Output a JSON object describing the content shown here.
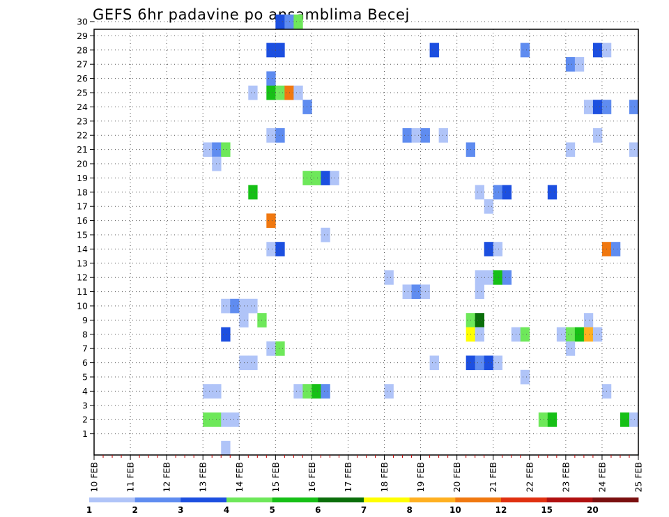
{
  "chart_data": {
    "type": "heatmap",
    "title": "GEFS 6hr padavine po ansamblima Becej",
    "xlabel": "",
    "ylabel": "",
    "x_unit": "6h steps from 10 FEB 00UTC",
    "x_tick_labels": [
      "10 FEB",
      "11 FEB",
      "12 FEB",
      "13 FEB",
      "14 FEB",
      "15 FEB",
      "16 FEB",
      "17 FEB",
      "18 FEB",
      "19 FEB",
      "20 FEB",
      "21 FEB",
      "22 FEB",
      "23 FEB",
      "24 FEB",
      "25 FEB"
    ],
    "xlim": [
      0,
      60
    ],
    "y_tick_labels": [
      "1",
      "2",
      "3",
      "4",
      "5",
      "6",
      "7",
      "8",
      "9",
      "10",
      "11",
      "12",
      "13",
      "14",
      "15",
      "16",
      "17",
      "18",
      "19",
      "20",
      "21",
      "22",
      "23",
      "24",
      "25",
      "26",
      "27",
      "28",
      "29",
      "30"
    ],
    "ylim": [
      0,
      30
    ],
    "grid": true,
    "legend_position": "bottom",
    "colorbar": {
      "labels": [
        "1",
        "2",
        "3",
        "4",
        "5",
        "6",
        "7",
        "8",
        "10",
        "12",
        "15",
        "20"
      ],
      "colors": [
        "#b0c4f8",
        "#5f8cf0",
        "#1c4fe0",
        "#6ee85a",
        "#16c016",
        "#0a6e0a",
        "#ffff00",
        "#ffb020",
        "#f07810",
        "#e03010",
        "#b01010",
        "#7a0f0f"
      ]
    },
    "cells": [
      {
        "m": 30,
        "t": 20,
        "c": "#1c4fe0"
      },
      {
        "m": 30,
        "t": 21,
        "c": "#5f8cf0"
      },
      {
        "m": 30,
        "t": 22,
        "c": "#6ee85a"
      },
      {
        "m": 28,
        "t": 19,
        "c": "#1c4fe0"
      },
      {
        "m": 28,
        "t": 20,
        "c": "#1c4fe0"
      },
      {
        "m": 28,
        "t": 37,
        "c": "#1c4fe0"
      },
      {
        "m": 28,
        "t": 47,
        "c": "#5f8cf0"
      },
      {
        "m": 28,
        "t": 55,
        "c": "#1c4fe0"
      },
      {
        "m": 28,
        "t": 56,
        "c": "#b0c4f8"
      },
      {
        "m": 27,
        "t": 52,
        "c": "#5f8cf0"
      },
      {
        "m": 27,
        "t": 53,
        "c": "#b0c4f8"
      },
      {
        "m": 26,
        "t": 19,
        "c": "#5f8cf0"
      },
      {
        "m": 25,
        "t": 17,
        "c": "#b0c4f8"
      },
      {
        "m": 25,
        "t": 19,
        "c": "#16c016"
      },
      {
        "m": 25,
        "t": 20,
        "c": "#6ee85a"
      },
      {
        "m": 25,
        "t": 21,
        "c": "#f07810"
      },
      {
        "m": 25,
        "t": 22,
        "c": "#b0c4f8"
      },
      {
        "m": 24,
        "t": 23,
        "c": "#5f8cf0"
      },
      {
        "m": 24,
        "t": 54,
        "c": "#b0c4f8"
      },
      {
        "m": 24,
        "t": 55,
        "c": "#1c4fe0"
      },
      {
        "m": 24,
        "t": 56,
        "c": "#5f8cf0"
      },
      {
        "m": 24,
        "t": 59,
        "c": "#5f8cf0"
      },
      {
        "m": 22,
        "t": 19,
        "c": "#b0c4f8"
      },
      {
        "m": 22,
        "t": 20,
        "c": "#5f8cf0"
      },
      {
        "m": 22,
        "t": 34,
        "c": "#5f8cf0"
      },
      {
        "m": 22,
        "t": 35,
        "c": "#b0c4f8"
      },
      {
        "m": 22,
        "t": 36,
        "c": "#5f8cf0"
      },
      {
        "m": 22,
        "t": 38,
        "c": "#b0c4f8"
      },
      {
        "m": 22,
        "t": 55,
        "c": "#b0c4f8"
      },
      {
        "m": 21,
        "t": 12,
        "c": "#b0c4f8"
      },
      {
        "m": 21,
        "t": 13,
        "c": "#5f8cf0"
      },
      {
        "m": 21,
        "t": 14,
        "c": "#6ee85a"
      },
      {
        "m": 21,
        "t": 41,
        "c": "#5f8cf0"
      },
      {
        "m": 21,
        "t": 52,
        "c": "#b0c4f8"
      },
      {
        "m": 21,
        "t": 59,
        "c": "#b0c4f8"
      },
      {
        "m": 20,
        "t": 13,
        "c": "#b0c4f8"
      },
      {
        "m": 19,
        "t": 23,
        "c": "#6ee85a"
      },
      {
        "m": 19,
        "t": 24,
        "c": "#6ee85a"
      },
      {
        "m": 19,
        "t": 25,
        "c": "#1c4fe0"
      },
      {
        "m": 19,
        "t": 26,
        "c": "#b0c4f8"
      },
      {
        "m": 18,
        "t": 17,
        "c": "#16c016"
      },
      {
        "m": 18,
        "t": 42,
        "c": "#b0c4f8"
      },
      {
        "m": 18,
        "t": 44,
        "c": "#5f8cf0"
      },
      {
        "m": 18,
        "t": 45,
        "c": "#1c4fe0"
      },
      {
        "m": 18,
        "t": 50,
        "c": "#1c4fe0"
      },
      {
        "m": 17,
        "t": 43,
        "c": "#b0c4f8"
      },
      {
        "m": 16,
        "t": 19,
        "c": "#f07810"
      },
      {
        "m": 15,
        "t": 25,
        "c": "#b0c4f8"
      },
      {
        "m": 14,
        "t": 19,
        "c": "#b0c4f8"
      },
      {
        "m": 14,
        "t": 20,
        "c": "#1c4fe0"
      },
      {
        "m": 14,
        "t": 43,
        "c": "#1c4fe0"
      },
      {
        "m": 14,
        "t": 44,
        "c": "#b0c4f8"
      },
      {
        "m": 14,
        "t": 56,
        "c": "#f07810"
      },
      {
        "m": 14,
        "t": 57,
        "c": "#5f8cf0"
      },
      {
        "m": 12,
        "t": 32,
        "c": "#b0c4f8"
      },
      {
        "m": 12,
        "t": 42,
        "c": "#b0c4f8"
      },
      {
        "m": 12,
        "t": 43,
        "c": "#b0c4f8"
      },
      {
        "m": 12,
        "t": 44,
        "c": "#16c016"
      },
      {
        "m": 12,
        "t": 45,
        "c": "#5f8cf0"
      },
      {
        "m": 11,
        "t": 34,
        "c": "#b0c4f8"
      },
      {
        "m": 11,
        "t": 35,
        "c": "#5f8cf0"
      },
      {
        "m": 11,
        "t": 36,
        "c": "#b0c4f8"
      },
      {
        "m": 11,
        "t": 42,
        "c": "#b0c4f8"
      },
      {
        "m": 10,
        "t": 14,
        "c": "#b0c4f8"
      },
      {
        "m": 10,
        "t": 15,
        "c": "#5f8cf0"
      },
      {
        "m": 10,
        "t": 16,
        "c": "#b0c4f8"
      },
      {
        "m": 10,
        "t": 17,
        "c": "#b0c4f8"
      },
      {
        "m": 9,
        "t": 16,
        "c": "#b0c4f8"
      },
      {
        "m": 9,
        "t": 18,
        "c": "#6ee85a"
      },
      {
        "m": 9,
        "t": 41,
        "c": "#6ee85a"
      },
      {
        "m": 9,
        "t": 42,
        "c": "#0a6e0a"
      },
      {
        "m": 9,
        "t": 54,
        "c": "#b0c4f8"
      },
      {
        "m": 8,
        "t": 14,
        "c": "#1c4fe0"
      },
      {
        "m": 8,
        "t": 41,
        "c": "#ffff00"
      },
      {
        "m": 8,
        "t": 42,
        "c": "#b0c4f8"
      },
      {
        "m": 8,
        "t": 46,
        "c": "#b0c4f8"
      },
      {
        "m": 8,
        "t": 47,
        "c": "#6ee85a"
      },
      {
        "m": 8,
        "t": 51,
        "c": "#b0c4f8"
      },
      {
        "m": 8,
        "t": 52,
        "c": "#6ee85a"
      },
      {
        "m": 8,
        "t": 53,
        "c": "#16c016"
      },
      {
        "m": 8,
        "t": 54,
        "c": "#ffb020"
      },
      {
        "m": 8,
        "t": 55,
        "c": "#b0c4f8"
      },
      {
        "m": 7,
        "t": 19,
        "c": "#b0c4f8"
      },
      {
        "m": 7,
        "t": 20,
        "c": "#6ee85a"
      },
      {
        "m": 7,
        "t": 52,
        "c": "#b0c4f8"
      },
      {
        "m": 6,
        "t": 16,
        "c": "#b0c4f8"
      },
      {
        "m": 6,
        "t": 17,
        "c": "#b0c4f8"
      },
      {
        "m": 6,
        "t": 37,
        "c": "#b0c4f8"
      },
      {
        "m": 6,
        "t": 41,
        "c": "#1c4fe0"
      },
      {
        "m": 6,
        "t": 42,
        "c": "#5f8cf0"
      },
      {
        "m": 6,
        "t": 43,
        "c": "#1c4fe0"
      },
      {
        "m": 6,
        "t": 44,
        "c": "#b0c4f8"
      },
      {
        "m": 5,
        "t": 47,
        "c": "#b0c4f8"
      },
      {
        "m": 4,
        "t": 12,
        "c": "#b0c4f8"
      },
      {
        "m": 4,
        "t": 13,
        "c": "#b0c4f8"
      },
      {
        "m": 4,
        "t": 22,
        "c": "#b0c4f8"
      },
      {
        "m": 4,
        "t": 23,
        "c": "#6ee85a"
      },
      {
        "m": 4,
        "t": 24,
        "c": "#16c016"
      },
      {
        "m": 4,
        "t": 25,
        "c": "#5f8cf0"
      },
      {
        "m": 4,
        "t": 32,
        "c": "#b0c4f8"
      },
      {
        "m": 4,
        "t": 56,
        "c": "#b0c4f8"
      },
      {
        "m": 2,
        "t": 12,
        "c": "#6ee85a"
      },
      {
        "m": 2,
        "t": 13,
        "c": "#6ee85a"
      },
      {
        "m": 2,
        "t": 14,
        "c": "#b0c4f8"
      },
      {
        "m": 2,
        "t": 15,
        "c": "#b0c4f8"
      },
      {
        "m": 2,
        "t": 49,
        "c": "#6ee85a"
      },
      {
        "m": 2,
        "t": 50,
        "c": "#16c016"
      },
      {
        "m": 2,
        "t": 58,
        "c": "#16c016"
      },
      {
        "m": 2,
        "t": 59,
        "c": "#b0c4f8"
      },
      {
        "m": 0,
        "t": 14,
        "c": "#b0c4f8"
      }
    ]
  }
}
